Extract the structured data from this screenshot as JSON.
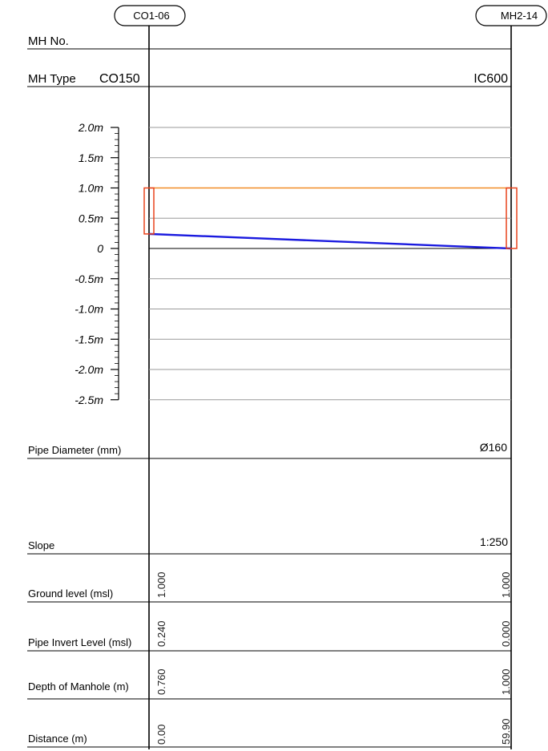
{
  "manholes": {
    "start": {
      "id": "CO1-06",
      "type": "CO150"
    },
    "end": {
      "id": "MH2-14",
      "type": "IC600"
    }
  },
  "row_labels": {
    "mh_no": "MH No.",
    "mh_type": "MH Type",
    "pipe_diameter": "Pipe Diameter (mm)",
    "slope": "Slope",
    "ground_level": "Ground level (msl)",
    "pipe_invert": "Pipe Invert Level (msl)",
    "depth": "Depth of Manhole (m)",
    "distance": "Distance (m)"
  },
  "scale_labels": [
    "2.0m",
    "1.5m",
    "1.0m",
    "0.5m",
    "0",
    "-0.5m",
    "-1.0m",
    "-1.5m",
    "-2.0m",
    "-2.5m"
  ],
  "pipe": {
    "diameter": "Ø160",
    "slope": "1:250"
  },
  "values": {
    "ground_level": {
      "start": "1.000",
      "end": "1.000"
    },
    "pipe_invert": {
      "start": "0.240",
      "end": "0.000"
    },
    "depth": {
      "start": "0.760",
      "end": "1.000"
    },
    "distance": {
      "start": "0.00",
      "end": "59.90"
    }
  },
  "profile": {
    "ground_level_m": 1.0,
    "invert_start_m": 0.24,
    "invert_end_m": 0.0
  },
  "colors": {
    "ground_line": "#f28c28",
    "pipe_line": "#1a1adf",
    "manhole_box": "#e8431c",
    "grid": "#9a9a9a"
  }
}
